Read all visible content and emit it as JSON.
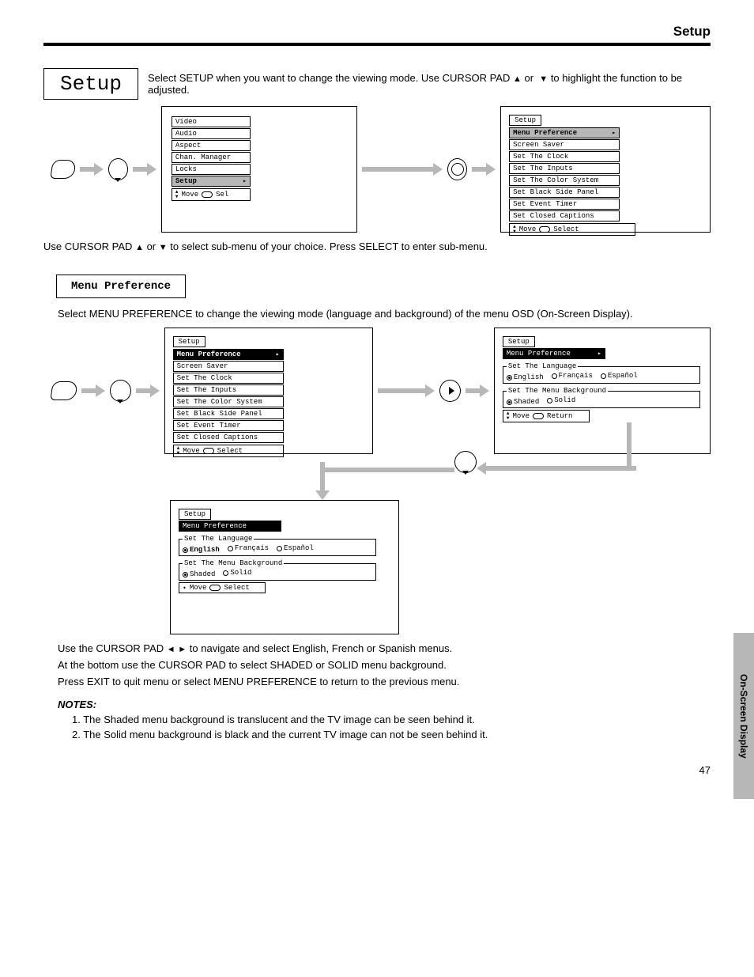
{
  "page": {
    "header": "Setup",
    "number": "47",
    "side_tab": "On-Screen Display"
  },
  "top": {
    "box": "Setup",
    "desc_before": "Select SETUP when you want to change the viewing mode. Use CURSOR PAD",
    "desc_after": "to highlight the function to be adjusted."
  },
  "arrows": {
    "up": "▲",
    "down": "▼",
    "left": "◄",
    "right": "►"
  },
  "menu1": {
    "items": [
      "Video",
      "Audio",
      "Aspect",
      "Chan. Manager",
      "Locks",
      "Setup"
    ],
    "selected_index": 5,
    "footer_move": "Move",
    "footer_sel": "Sel"
  },
  "setup_menu": {
    "title": "Setup",
    "items": [
      "Menu Preference",
      "Screen Saver",
      "Set The Clock",
      "Set The Inputs",
      "Set The Color System",
      "Set Black Side Panel",
      "Set Event Timer",
      "Set Closed Captions"
    ],
    "selected_index": 0,
    "footer_move": "Move",
    "footer_sel": "Select"
  },
  "step_caption": "Use CURSOR PAD ▲ or ▼ to select sub-menu of your choice. Press SELECT to enter sub-menu.",
  "menu_pref": {
    "box": "Menu Preference",
    "desc": "Select MENU PREFERENCE to change the viewing mode (language and background) of the menu OSD (On-Screen Display)."
  },
  "pref_detail": {
    "title": "Setup",
    "sub": "Menu Preference",
    "lang_legend": "Set The Language",
    "langs": [
      "English",
      "Français",
      "Español"
    ],
    "lang_selected": 0,
    "bg_legend": "Set The Menu Background",
    "bgs": [
      "Shaded",
      "Solid"
    ],
    "bg_selected": 0,
    "footer_move": "Move",
    "footer_return": "Return",
    "footer_select": "Select"
  },
  "bottom": {
    "line1_a": "Use the CURSOR PAD",
    "line1_b": "to navigate and select English, French or Spanish menus.",
    "line2": "At the bottom use the CURSOR PAD to select SHADED or SOLID menu background.",
    "line3": "Press EXIT to quit menu or select MENU PREFERENCE to return to the previous menu.",
    "note_label": "NOTES:",
    "note1": "1. The Shaded menu background is translucent and the TV image can be seen behind it.",
    "note2": "2. The Solid menu background is black and the current TV image can not be seen behind it."
  }
}
